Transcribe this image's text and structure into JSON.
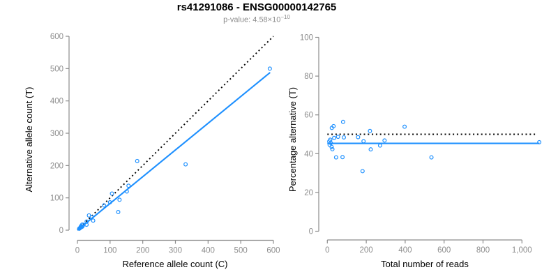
{
  "header": {
    "title": "rs41291086 - ENSG00000142765",
    "pvalue_text": "p-value: 4.58×10",
    "pvalue_exponent": "−10"
  },
  "colors": {
    "accent": "#1E90FF",
    "axis": "#8C8C8C",
    "tick_text": "#8C8C8C",
    "label_text": "#000000",
    "subtitle_text": "#8C8C8C",
    "dotted_line": "#000000",
    "background": "#FFFFFF"
  },
  "chart_data": [
    {
      "type": "scatter",
      "name": "allele-counts-scatter",
      "xlabel": "Reference allele count (C)",
      "ylabel": "Alternative allele count (T)",
      "xlim": [
        0,
        600
      ],
      "ylim": [
        0,
        600
      ],
      "xticks": [
        0,
        100,
        200,
        300,
        400,
        500,
        600
      ],
      "xtick_labels": [
        "0",
        "100",
        "200",
        "300",
        "400",
        "500",
        "600"
      ],
      "yticks": [
        0,
        100,
        200,
        300,
        400,
        500,
        600
      ],
      "ytick_labels": [
        "0",
        "100",
        "200",
        "300",
        "400",
        "500",
        "600"
      ],
      "grid": false,
      "legend": null,
      "points": [
        [
          5.4,
          4.6
        ],
        [
          6.7,
          5.3
        ],
        [
          7.9,
          7.1
        ],
        [
          9.8,
          8.2
        ],
        [
          12.4,
          9.6
        ],
        [
          10.7,
          12.3
        ],
        [
          15,
          11
        ],
        [
          14.7,
          17.3
        ],
        [
          18.2,
          16.8
        ],
        [
          27.9,
          17.1
        ],
        [
          28.2,
          26.8
        ],
        [
          48.2,
          29.8
        ],
        [
          35.3,
          45.7
        ],
        [
          43.9,
          41.1
        ],
        [
          81.4,
          76.6
        ],
        [
          99.7,
          86.3
        ],
        [
          105.8,
          113.2
        ],
        [
          124.9,
          56.1
        ],
        [
          128.9,
          94.1
        ],
        [
          151.2,
          119.8
        ],
        [
          156.4,
          137.6
        ],
        [
          183,
          214
        ],
        [
          331.2,
          203.8
        ],
        [
          589.1,
          499.9
        ]
      ],
      "lines": [
        {
          "name": "identity-line",
          "style": "dotted",
          "color": "#000000",
          "x1": 0,
          "y1": 0,
          "x2": 600,
          "y2": 600
        },
        {
          "name": "fit-line",
          "style": "solid",
          "color": "#1E90FF",
          "x1": 0,
          "y1": 0,
          "x2": 590,
          "y2": 488
        }
      ]
    },
    {
      "type": "scatter",
      "name": "percentage-vs-reads-scatter",
      "xlabel": "Total number of reads",
      "ylabel": "Percentage alternative (T)",
      "xlim": [
        0,
        1100
      ],
      "ylim": [
        0,
        100
      ],
      "xticks": [
        0,
        200,
        400,
        600,
        800,
        1000
      ],
      "xtick_labels": [
        "0",
        "200",
        "400",
        "600",
        "800",
        "1,000"
      ],
      "yticks": [
        0,
        20,
        40,
        60,
        80,
        100
      ],
      "ytick_labels": [
        "0",
        "20",
        "40",
        "60",
        "80",
        "100"
      ],
      "grid": false,
      "legend": null,
      "points": [
        [
          10,
          46.3
        ],
        [
          12,
          44.5
        ],
        [
          15,
          47.2
        ],
        [
          18,
          45.5
        ],
        [
          22,
          43.5
        ],
        [
          23,
          53.3
        ],
        [
          26,
          42.3
        ],
        [
          32,
          54.2
        ],
        [
          35,
          48.1
        ],
        [
          45,
          38.1
        ],
        [
          55,
          48.7
        ],
        [
          78,
          38.2
        ],
        [
          81,
          56.4
        ],
        [
          85,
          48.4
        ],
        [
          158,
          48.5
        ],
        [
          181,
          31
        ],
        [
          186,
          46.4
        ],
        [
          219,
          51.7
        ],
        [
          223,
          42.2
        ],
        [
          271,
          44.2
        ],
        [
          294,
          46.8
        ],
        [
          397,
          53.9
        ],
        [
          535,
          38.1
        ],
        [
          1089,
          45.9
        ]
      ],
      "lines": [
        {
          "name": "expected-ratio-line",
          "style": "dotted",
          "color": "#000000",
          "x1": 0,
          "y1": 50,
          "x2": 1075,
          "y2": 50
        },
        {
          "name": "observed-ratio-line",
          "style": "solid",
          "color": "#1E90FF",
          "x1": 0,
          "y1": 45.3,
          "x2": 1090,
          "y2": 45.3
        }
      ]
    }
  ]
}
